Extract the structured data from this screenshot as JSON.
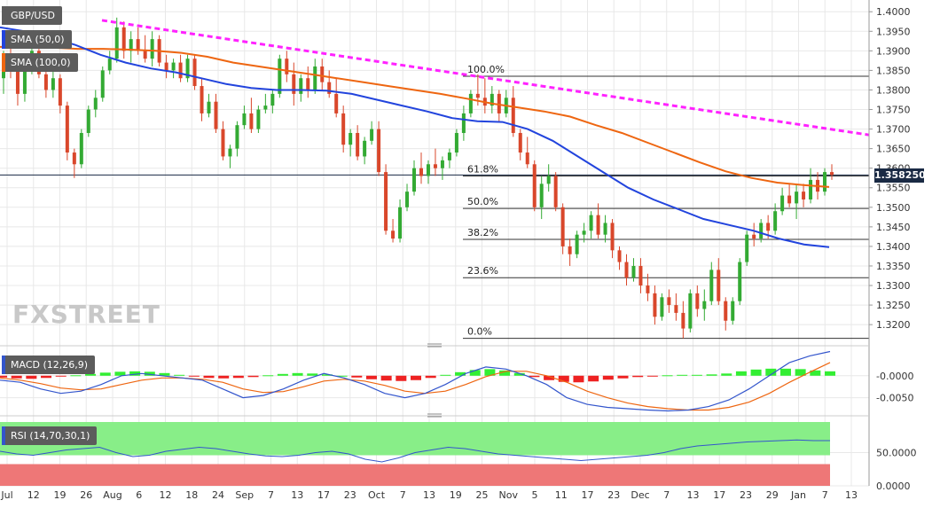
{
  "panel_titles": {
    "symbol": "GBP/USD",
    "sma50": "SMA (50,0)",
    "sma100": "SMA (100,0)",
    "macd": "MACD (12,26,9)",
    "rsi": "RSI (14,70,30,1)"
  },
  "watermark": "FXSTREET",
  "last_price_label": "1.358250",
  "colors": {
    "bull": "#33aa33",
    "bear": "#d9472b",
    "sma50": "#2244dd",
    "sma100": "#ee6611",
    "trendline": "#ff22ff",
    "macd_line": "#3355cc",
    "signal_line": "#ee6611",
    "hist_pos": "#33ee33",
    "hist_neg": "#ee2222",
    "rsi_line": "#3355cc",
    "rsi_overbought": "#88ee88",
    "rsi_oversold": "#ee7777",
    "grid": "#e8e8e8",
    "axis_text": "#333333"
  },
  "chart_data": [
    {
      "type": "candlestick",
      "title": "GBP/USD",
      "ylim": [
        1.3155,
        1.403
      ],
      "y_ticks": [
        "1.4000",
        "1.3950",
        "1.3900",
        "1.3850",
        "1.3800",
        "1.3750",
        "1.3700",
        "1.3650",
        "1.3600",
        "1.3550",
        "1.3500",
        "1.3450",
        "1.3400",
        "1.3350",
        "1.3300",
        "1.3250",
        "1.3200"
      ],
      "x_ticks": [
        "Jul",
        "12",
        "19",
        "26",
        "Aug",
        "6",
        "12",
        "18",
        "24",
        "Sep",
        "7",
        "13",
        "17",
        "23",
        "Oct",
        "7",
        "13",
        "19",
        "25",
        "Nov",
        "5",
        "11",
        "17",
        "23",
        "Dec",
        "7",
        "13",
        "17",
        "23",
        "29",
        "Jan",
        "7",
        "13"
      ],
      "candles_ohlc": [
        [
          1.383,
          1.39,
          1.379,
          1.387
        ],
        [
          1.387,
          1.392,
          1.383,
          1.385
        ],
        [
          1.385,
          1.388,
          1.376,
          1.379
        ],
        [
          1.379,
          1.388,
          1.377,
          1.386
        ],
        [
          1.386,
          1.392,
          1.384,
          1.39
        ],
        [
          1.39,
          1.391,
          1.383,
          1.384
        ],
        [
          1.384,
          1.386,
          1.378,
          1.38
        ],
        [
          1.38,
          1.385,
          1.378,
          1.383
        ],
        [
          1.383,
          1.384,
          1.374,
          1.376
        ],
        [
          1.376,
          1.377,
          1.362,
          1.364
        ],
        [
          1.364,
          1.365,
          1.3575,
          1.361
        ],
        [
          1.361,
          1.37,
          1.36,
          1.369
        ],
        [
          1.369,
          1.376,
          1.368,
          1.375
        ],
        [
          1.375,
          1.38,
          1.373,
          1.378
        ],
        [
          1.378,
          1.386,
          1.377,
          1.385
        ],
        [
          1.385,
          1.39,
          1.384,
          1.388
        ],
        [
          1.388,
          1.3985,
          1.387,
          1.396
        ],
        [
          1.396,
          1.3975,
          1.388,
          1.39
        ],
        [
          1.39,
          1.395,
          1.387,
          1.393
        ],
        [
          1.393,
          1.396,
          1.389,
          1.39
        ],
        [
          1.39,
          1.394,
          1.387,
          1.388
        ],
        [
          1.388,
          1.395,
          1.386,
          1.393
        ],
        [
          1.393,
          1.394,
          1.386,
          1.387
        ],
        [
          1.387,
          1.389,
          1.383,
          1.385
        ],
        [
          1.385,
          1.388,
          1.383,
          1.387
        ],
        [
          1.387,
          1.389,
          1.382,
          1.383
        ],
        [
          1.383,
          1.389,
          1.382,
          1.388
        ],
        [
          1.388,
          1.389,
          1.38,
          1.381
        ],
        [
          1.381,
          1.383,
          1.372,
          1.374
        ],
        [
          1.374,
          1.379,
          1.373,
          1.377
        ],
        [
          1.377,
          1.379,
          1.369,
          1.37
        ],
        [
          1.37,
          1.372,
          1.362,
          1.363
        ],
        [
          1.363,
          1.366,
          1.36,
          1.365
        ],
        [
          1.365,
          1.372,
          1.363,
          1.371
        ],
        [
          1.371,
          1.376,
          1.37,
          1.374
        ],
        [
          1.374,
          1.378,
          1.369,
          1.37
        ],
        [
          1.37,
          1.376,
          1.369,
          1.375
        ],
        [
          1.375,
          1.379,
          1.374,
          1.376
        ],
        [
          1.376,
          1.38,
          1.374,
          1.379
        ],
        [
          1.379,
          1.389,
          1.378,
          1.388
        ],
        [
          1.388,
          1.39,
          1.382,
          1.384
        ],
        [
          1.384,
          1.387,
          1.376,
          1.379
        ],
        [
          1.379,
          1.384,
          1.377,
          1.383
        ],
        [
          1.383,
          1.386,
          1.378,
          1.38
        ],
        [
          1.38,
          1.388,
          1.379,
          1.386
        ],
        [
          1.386,
          1.388,
          1.38,
          1.382
        ],
        [
          1.382,
          1.385,
          1.378,
          1.379
        ],
        [
          1.379,
          1.383,
          1.373,
          1.374
        ],
        [
          1.374,
          1.376,
          1.364,
          1.366
        ],
        [
          1.366,
          1.37,
          1.363,
          1.369
        ],
        [
          1.369,
          1.371,
          1.362,
          1.363
        ],
        [
          1.363,
          1.368,
          1.361,
          1.367
        ],
        [
          1.367,
          1.372,
          1.366,
          1.37
        ],
        [
          1.37,
          1.372,
          1.358,
          1.359
        ],
        [
          1.359,
          1.361,
          1.343,
          1.344
        ],
        [
          1.344,
          1.347,
          1.341,
          1.342
        ],
        [
          1.342,
          1.352,
          1.341,
          1.35
        ],
        [
          1.35,
          1.356,
          1.349,
          1.354
        ],
        [
          1.354,
          1.362,
          1.353,
          1.36
        ],
        [
          1.36,
          1.364,
          1.356,
          1.358
        ],
        [
          1.358,
          1.362,
          1.356,
          1.361
        ],
        [
          1.361,
          1.365,
          1.358,
          1.36
        ],
        [
          1.36,
          1.363,
          1.357,
          1.362
        ],
        [
          1.362,
          1.365,
          1.36,
          1.364
        ],
        [
          1.364,
          1.37,
          1.363,
          1.369
        ],
        [
          1.369,
          1.376,
          1.367,
          1.374
        ],
        [
          1.374,
          1.38,
          1.373,
          1.379
        ],
        [
          1.379,
          1.384,
          1.376,
          1.378
        ],
        [
          1.378,
          1.383,
          1.374,
          1.376
        ],
        [
          1.376,
          1.381,
          1.374,
          1.379
        ],
        [
          1.379,
          1.38,
          1.372,
          1.374
        ],
        [
          1.374,
          1.38,
          1.373,
          1.378
        ],
        [
          1.378,
          1.381,
          1.368,
          1.369
        ],
        [
          1.369,
          1.37,
          1.362,
          1.364
        ],
        [
          1.364,
          1.368,
          1.36,
          1.361
        ],
        [
          1.361,
          1.362,
          1.349,
          1.35
        ],
        [
          1.35,
          1.358,
          1.347,
          1.356
        ],
        [
          1.356,
          1.361,
          1.354,
          1.358
        ],
        [
          1.358,
          1.359,
          1.349,
          1.35
        ],
        [
          1.35,
          1.351,
          1.338,
          1.34
        ],
        [
          1.34,
          1.342,
          1.335,
          1.338
        ],
        [
          1.338,
          1.344,
          1.337,
          1.343
        ],
        [
          1.343,
          1.346,
          1.341,
          1.344
        ],
        [
          1.344,
          1.349,
          1.342,
          1.348
        ],
        [
          1.348,
          1.351,
          1.342,
          1.343
        ],
        [
          1.343,
          1.348,
          1.341,
          1.346
        ],
        [
          1.346,
          1.347,
          1.337,
          1.339
        ],
        [
          1.339,
          1.34,
          1.334,
          1.336
        ],
        [
          1.336,
          1.338,
          1.33,
          1.332
        ],
        [
          1.332,
          1.337,
          1.331,
          1.335
        ],
        [
          1.335,
          1.337,
          1.328,
          1.33
        ],
        [
          1.33,
          1.333,
          1.326,
          1.328
        ],
        [
          1.328,
          1.33,
          1.32,
          1.322
        ],
        [
          1.322,
          1.328,
          1.321,
          1.327
        ],
        [
          1.327,
          1.329,
          1.323,
          1.325
        ],
        [
          1.325,
          1.328,
          1.321,
          1.323
        ],
        [
          1.323,
          1.326,
          1.3165,
          1.319
        ],
        [
          1.319,
          1.329,
          1.318,
          1.328
        ],
        [
          1.328,
          1.33,
          1.322,
          1.324
        ],
        [
          1.324,
          1.329,
          1.321,
          1.326
        ],
        [
          1.326,
          1.336,
          1.325,
          1.334
        ],
        [
          1.334,
          1.337,
          1.325,
          1.326
        ],
        [
          1.326,
          1.327,
          1.3185,
          1.321
        ],
        [
          1.321,
          1.327,
          1.32,
          1.326
        ],
        [
          1.326,
          1.337,
          1.325,
          1.336
        ],
        [
          1.336,
          1.344,
          1.335,
          1.343
        ],
        [
          1.343,
          1.346,
          1.34,
          1.342
        ],
        [
          1.342,
          1.347,
          1.341,
          1.346
        ],
        [
          1.346,
          1.348,
          1.342,
          1.344
        ],
        [
          1.344,
          1.351,
          1.343,
          1.349
        ],
        [
          1.349,
          1.355,
          1.348,
          1.353
        ],
        [
          1.353,
          1.356,
          1.35,
          1.351
        ],
        [
          1.351,
          1.356,
          1.347,
          1.354
        ],
        [
          1.354,
          1.356,
          1.35,
          1.352
        ],
        [
          1.352,
          1.36,
          1.351,
          1.357
        ],
        [
          1.357,
          1.359,
          1.352,
          1.354
        ],
        [
          1.354,
          1.36,
          1.353,
          1.359
        ],
        [
          1.359,
          1.361,
          1.357,
          1.3583
        ]
      ],
      "sma50": [
        1.396,
        1.395,
        1.3935,
        1.3915,
        1.389,
        1.387,
        1.3855,
        1.3845,
        1.383,
        1.3815,
        1.3805,
        1.38,
        1.38,
        1.3798,
        1.379,
        1.3775,
        1.376,
        1.3745,
        1.3728,
        1.372,
        1.3718,
        1.37,
        1.367,
        1.363,
        1.359,
        1.355,
        1.352,
        1.3495,
        1.347,
        1.3455,
        1.344,
        1.342,
        1.3405,
        1.3398
      ],
      "sma100": [
        1.391,
        1.391,
        1.3908,
        1.3905,
        1.3905,
        1.3903,
        1.39,
        1.3895,
        1.3885,
        1.387,
        1.386,
        1.385,
        1.384,
        1.383,
        1.382,
        1.381,
        1.38,
        1.379,
        1.3778,
        1.3765,
        1.3755,
        1.3745,
        1.3732,
        1.371,
        1.369,
        1.3665,
        1.364,
        1.3615,
        1.3592,
        1.3575,
        1.3563,
        1.3557,
        1.3552
      ],
      "trendline": {
        "start": 1.3978,
        "end": 1.3685
      },
      "fibonacci": [
        {
          "label": "100.0%",
          "value": 1.3835
        },
        {
          "label": "61.8%",
          "value": 1.358
        },
        {
          "label": "50.0%",
          "value": 1.3497
        },
        {
          "label": "38.2%",
          "value": 1.3418
        },
        {
          "label": "23.6%",
          "value": 1.332
        },
        {
          "label": "0.0%",
          "value": 1.3165
        }
      ],
      "last_price": 1.35825
    },
    {
      "type": "macd",
      "title": "MACD (12,26,9)",
      "y_ticks": [
        "-0.0000",
        "-0.0050"
      ],
      "ylim": [
        -0.0085,
        0.006
      ],
      "histogram": [
        -0.0004,
        -0.0006,
        -0.0007,
        -0.0005,
        -0.0002,
        0.0001,
        0.0004,
        0.0007,
        0.0009,
        0.001,
        0.0009,
        0.0006,
        0.0002,
        -0.0002,
        -0.0005,
        -0.0006,
        -0.0005,
        -0.0003,
        0.0001,
        0.0004,
        0.0006,
        0.0005,
        0.0003,
        0.0,
        -0.0004,
        -0.0008,
        -0.0011,
        -0.0012,
        -0.001,
        -0.0005,
        0.0002,
        0.0008,
        0.0013,
        0.0015,
        0.0012,
        0.0006,
        -0.0003,
        -0.001,
        -0.0014,
        -0.0015,
        -0.0013,
        -0.0009,
        -0.0006,
        -0.0003,
        -0.0001,
        0.0001,
        0.0002,
        0.0002,
        0.0003,
        0.0005,
        0.001,
        0.0014,
        0.0016,
        0.0016,
        0.0015,
        0.0012,
        0.001
      ],
      "macd_line": [
        -0.001,
        -0.0015,
        -0.003,
        -0.004,
        -0.0035,
        -0.002,
        0.0,
        0.0005,
        0.0,
        -0.0005,
        -0.001,
        -0.003,
        -0.005,
        -0.0045,
        -0.003,
        -0.001,
        0.0005,
        -0.0005,
        -0.002,
        -0.004,
        -0.005,
        -0.004,
        -0.002,
        0.0005,
        0.002,
        0.0015,
        0.0,
        -0.002,
        -0.005,
        -0.0065,
        -0.0072,
        -0.0075,
        -0.0078,
        -0.008,
        -0.0078,
        -0.007,
        -0.0055,
        -0.003,
        0.0,
        0.003,
        0.0045,
        0.0055
      ],
      "signal_line": [
        -0.0005,
        -0.001,
        -0.0018,
        -0.0028,
        -0.0032,
        -0.003,
        -0.002,
        -0.001,
        -0.0005,
        -0.0005,
        -0.0008,
        -0.0015,
        -0.003,
        -0.0038,
        -0.0036,
        -0.0025,
        -0.0012,
        -0.0008,
        -0.0012,
        -0.0022,
        -0.0035,
        -0.004,
        -0.0035,
        -0.002,
        -0.0002,
        0.001,
        0.001,
        0.0,
        -0.0015,
        -0.0035,
        -0.005,
        -0.0062,
        -0.007,
        -0.0075,
        -0.0078,
        -0.0078,
        -0.0072,
        -0.006,
        -0.004,
        -0.0015,
        0.0008,
        0.003
      ]
    },
    {
      "type": "rsi",
      "title": "RSI (14,70,30,1)",
      "y_ticks": [
        "50.0000",
        "0.0000"
      ],
      "ylim": [
        0,
        100
      ],
      "overbought": 70,
      "oversold": 30,
      "values": [
        52,
        48,
        46,
        50,
        54,
        56,
        58,
        50,
        44,
        46,
        52,
        55,
        58,
        56,
        52,
        48,
        45,
        44,
        46,
        50,
        52,
        48,
        40,
        36,
        42,
        50,
        54,
        58,
        56,
        52,
        48,
        46,
        44,
        42,
        40,
        38,
        40,
        42,
        44,
        46,
        50,
        56,
        60,
        62,
        64,
        66,
        67,
        68,
        69,
        68,
        68
      ]
    }
  ]
}
